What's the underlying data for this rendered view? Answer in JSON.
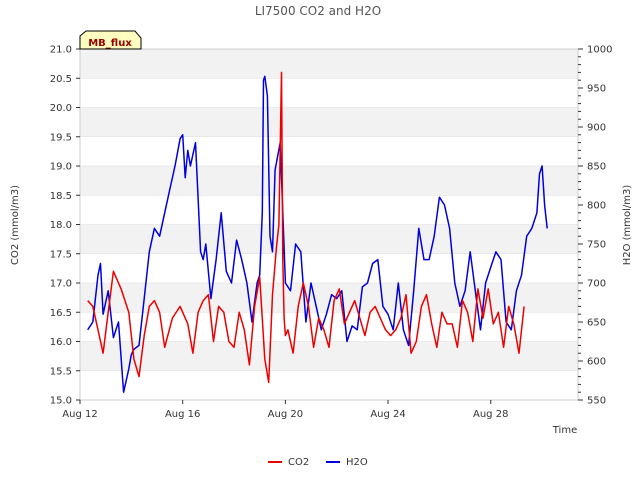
{
  "chart_data": {
    "type": "line",
    "title": "LI7500 CO2 and H2O",
    "badge": "MB_flux",
    "xlabel": "Time",
    "ylabel_left": "CO2 (mmol/m3)",
    "ylabel_right": "H2O (mmol/m3)",
    "x_domain": [
      0,
      19.4
    ],
    "x_ticks": [
      {
        "day": 0,
        "label": "Aug 12"
      },
      {
        "day": 4,
        "label": "Aug 16"
      },
      {
        "day": 8,
        "label": "Aug 20"
      },
      {
        "day": 12,
        "label": "Aug 24"
      },
      {
        "day": 16,
        "label": "Aug 28"
      }
    ],
    "ylim_left": [
      15.0,
      21.0
    ],
    "yticks_left": [
      "15.0",
      "15.5",
      "16.0",
      "16.5",
      "17.0",
      "17.5",
      "18.0",
      "18.5",
      "19.0",
      "19.5",
      "20.0",
      "20.5",
      "21.0"
    ],
    "ylim_right": [
      550,
      1000
    ],
    "yticks_right": [
      "550",
      "600",
      "650",
      "700",
      "750",
      "800",
      "850",
      "900",
      "950",
      "1000"
    ],
    "colors": {
      "co2": "#ee0000",
      "h2o": "#0000dd",
      "band": "#f2f2f2",
      "grid": "#dddddd",
      "badge_bg": "#ffffc0"
    },
    "legend": [
      {
        "name": "CO2",
        "color": "#ee0000"
      },
      {
        "name": "H2O",
        "color": "#0000dd"
      }
    ],
    "series": [
      {
        "name": "CO2",
        "axis": "left",
        "x": [
          0.3,
          0.5,
          0.7,
          0.9,
          1.1,
          1.3,
          1.6,
          1.9,
          2.1,
          2.3,
          2.5,
          2.7,
          2.9,
          3.1,
          3.3,
          3.6,
          3.9,
          4.2,
          4.4,
          4.6,
          4.8,
          5.0,
          5.2,
          5.4,
          5.6,
          5.8,
          6.0,
          6.2,
          6.4,
          6.6,
          6.8,
          7.0,
          7.2,
          7.35,
          7.5,
          7.65,
          7.75,
          7.85,
          7.9,
          7.95,
          8.0,
          8.1,
          8.3,
          8.5,
          8.7,
          8.9,
          9.1,
          9.3,
          9.5,
          9.7,
          9.9,
          10.1,
          10.3,
          10.5,
          10.7,
          10.9,
          11.1,
          11.3,
          11.5,
          11.7,
          11.9,
          12.1,
          12.3,
          12.5,
          12.7,
          12.9,
          13.1,
          13.3,
          13.5,
          13.7,
          13.9,
          14.1,
          14.3,
          14.5,
          14.7,
          14.9,
          15.1,
          15.3,
          15.5,
          15.7,
          15.9,
          16.1,
          16.3,
          16.5,
          16.7,
          16.9,
          17.1,
          17.3
        ],
        "values": [
          16.7,
          16.6,
          16.2,
          15.8,
          16.5,
          17.2,
          16.9,
          16.5,
          15.7,
          15.4,
          16.1,
          16.6,
          16.7,
          16.5,
          15.9,
          16.4,
          16.6,
          16.3,
          15.8,
          16.5,
          16.7,
          16.8,
          16.0,
          16.6,
          16.5,
          16.0,
          15.9,
          16.5,
          16.2,
          15.6,
          16.6,
          17.1,
          15.7,
          15.3,
          16.8,
          17.6,
          18.0,
          20.6,
          17.4,
          16.4,
          16.1,
          16.2,
          15.8,
          16.6,
          17.0,
          16.6,
          15.9,
          16.4,
          16.2,
          15.9,
          16.7,
          16.9,
          16.3,
          16.5,
          16.7,
          16.4,
          16.1,
          16.5,
          16.6,
          16.4,
          16.2,
          16.1,
          16.2,
          16.4,
          16.8,
          15.8,
          16.0,
          16.6,
          16.8,
          16.3,
          15.9,
          16.5,
          16.3,
          16.3,
          15.9,
          16.7,
          16.5,
          16.0,
          16.9,
          16.4,
          16.9,
          16.3,
          16.5,
          15.9,
          16.6,
          16.3,
          15.8,
          16.6
        ],
        "peak": {
          "x": 7.85,
          "value": 20.6
        }
      },
      {
        "name": "H2O",
        "axis": "right",
        "x": [
          0.3,
          0.5,
          0.7,
          0.8,
          0.9,
          1.1,
          1.3,
          1.5,
          1.7,
          1.9,
          2.0,
          2.1,
          2.3,
          2.5,
          2.7,
          2.9,
          3.1,
          3.3,
          3.5,
          3.7,
          3.9,
          4.0,
          4.1,
          4.2,
          4.3,
          4.5,
          4.7,
          4.8,
          4.9,
          5.1,
          5.3,
          5.5,
          5.7,
          5.9,
          6.1,
          6.3,
          6.5,
          6.7,
          6.9,
          7.0,
          7.1,
          7.15,
          7.2,
          7.3,
          7.4,
          7.5,
          7.6,
          7.8,
          8.0,
          8.2,
          8.4,
          8.6,
          8.8,
          9.0,
          9.2,
          9.4,
          9.6,
          9.8,
          10.0,
          10.2,
          10.4,
          10.6,
          10.8,
          11.0,
          11.2,
          11.4,
          11.6,
          11.8,
          12.0,
          12.2,
          12.4,
          12.6,
          12.8,
          13.0,
          13.2,
          13.4,
          13.6,
          13.8,
          14.0,
          14.2,
          14.4,
          14.6,
          14.8,
          15.0,
          15.2,
          15.4,
          15.6,
          15.8,
          16.0,
          16.2,
          16.4,
          16.6,
          16.8,
          17.0,
          17.2,
          17.4,
          17.6,
          17.8,
          17.9,
          18.0,
          18.1,
          18.2
        ],
        "values": [
          640,
          650,
          710,
          725,
          660,
          690,
          630,
          650,
          560,
          590,
          608,
          615,
          620,
          680,
          740,
          770,
          760,
          790,
          820,
          850,
          885,
          890,
          835,
          870,
          850,
          880,
          740,
          730,
          750,
          680,
          730,
          790,
          715,
          700,
          755,
          730,
          700,
          650,
          700,
          710,
          790,
          960,
          965,
          940,
          760,
          740,
          845,
          880,
          700,
          690,
          750,
          740,
          650,
          700,
          670,
          640,
          660,
          685,
          680,
          690,
          625,
          645,
          640,
          695,
          700,
          725,
          730,
          670,
          660,
          640,
          700,
          640,
          620,
          690,
          770,
          730,
          730,
          760,
          810,
          800,
          770,
          700,
          670,
          690,
          740,
          690,
          640,
          700,
          720,
          740,
          730,
          650,
          640,
          690,
          710,
          760,
          770,
          790,
          840,
          850,
          800,
          770
        ]
      }
    ]
  }
}
